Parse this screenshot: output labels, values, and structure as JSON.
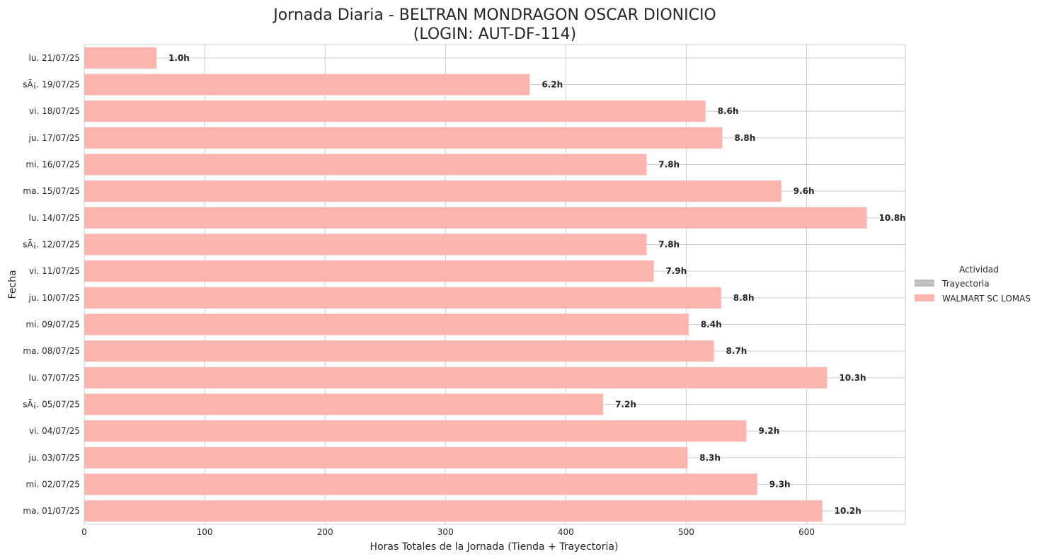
{
  "chart_data": {
    "type": "bar",
    "orientation": "horizontal",
    "stacked": true,
    "title_line1": "Jornada Diaria - BELTRAN MONDRAGON OSCAR DIONICIO",
    "title_line2": "(LOGIN: AUT-DF-114)",
    "xlabel": "Horas Totales de la Jornada (Tienda + Trayectoria)",
    "ylabel": "Fecha",
    "xlim": [
      0,
      682
    ],
    "xticks": [
      0,
      100,
      200,
      300,
      400,
      500,
      600
    ],
    "grid": true,
    "legend": {
      "title": "Actividad",
      "placement": "right",
      "entries": [
        {
          "name": "Trayectoria",
          "color": "#bfbfbf"
        },
        {
          "name": "WALMART SC LOMAS",
          "color": "#fbb4ae"
        }
      ]
    },
    "categories": [
      "lu. 21/07/25",
      "sÃ¡. 19/07/25",
      "vi. 18/07/25",
      "ju. 17/07/25",
      "mi. 16/07/25",
      "ma. 15/07/25",
      "lu. 14/07/25",
      "sÃ¡. 12/07/25",
      "vi. 11/07/25",
      "ju. 10/07/25",
      "mi. 09/07/25",
      "ma. 08/07/25",
      "lu. 07/07/25",
      "sÃ¡. 05/07/25",
      "vi. 04/07/25",
      "ju. 03/07/25",
      "mi. 02/07/25",
      "ma. 01/07/25"
    ],
    "series": [
      {
        "name": "Trayectoria",
        "color": "#bfbfbf",
        "values": [
          0,
          0,
          0,
          0,
          0,
          0,
          0,
          0,
          0,
          0,
          0,
          0,
          0,
          0,
          0,
          0,
          0,
          0
        ]
      },
      {
        "name": "WALMART SC LOMAS",
        "color": "#fbb4ae",
        "values": [
          60,
          370,
          516,
          530,
          467,
          579,
          650,
          467,
          473,
          529,
          502,
          523,
          617,
          431,
          550,
          501,
          559,
          613
        ]
      }
    ],
    "data_labels": [
      "1.0h",
      "6.2h",
      "8.6h",
      "8.8h",
      "7.8h",
      "9.6h",
      "10.8h",
      "7.8h",
      "7.9h",
      "8.8h",
      "8.4h",
      "8.7h",
      "10.3h",
      "7.2h",
      "9.2h",
      "8.3h",
      "9.3h",
      "10.2h"
    ]
  }
}
